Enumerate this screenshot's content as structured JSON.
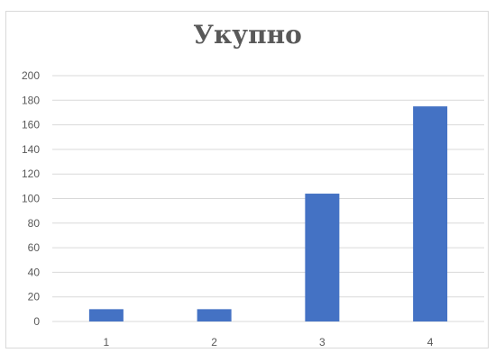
{
  "chart_data": {
    "type": "bar",
    "title": "Укупно",
    "categories": [
      "1",
      "2",
      "3",
      "4"
    ],
    "values": [
      10,
      10,
      104,
      175
    ],
    "xlabel": "",
    "ylabel": "",
    "ylim": [
      0,
      200
    ],
    "yticks": [
      "0",
      "20",
      "40",
      "60",
      "80",
      "100",
      "120",
      "140",
      "160",
      "180",
      "200"
    ],
    "grid": true,
    "bar_color": "#4472c4",
    "grid_color": "#d9d9d9"
  }
}
